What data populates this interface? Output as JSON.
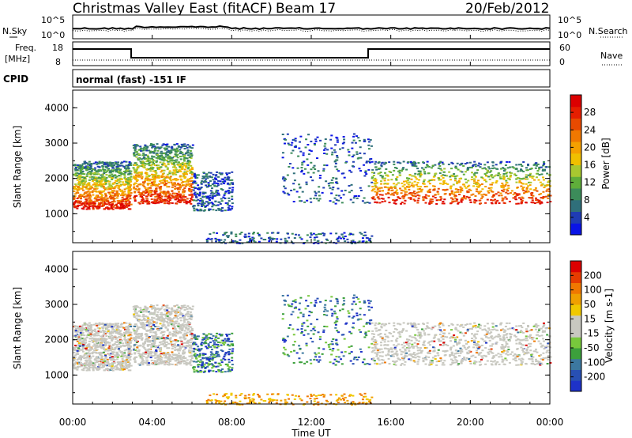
{
  "header": {
    "title": "Christmas Valley East (fitACF)",
    "beam": "Beam 17",
    "date": "20/Feb/2012"
  },
  "noise_panel": {
    "left_label": "N.Sky",
    "left_ticks": [
      "10^5",
      "10^0"
    ],
    "right_label": "N.Search",
    "right_ticks": [
      "10^5",
      "10^0"
    ]
  },
  "freq_panel": {
    "left_label_line1": "Freq.",
    "left_label_line2": "[MHz]",
    "left_ticks": [
      "18",
      "8"
    ],
    "right_label": "Nave",
    "right_ticks": [
      "60",
      "0"
    ]
  },
  "cpid_panel": {
    "label": "CPID",
    "text": "normal (fast) -151 IF"
  },
  "chart_data": [
    {
      "type": "heatmap",
      "name": "Power",
      "ylabel": "Slant Range [km]",
      "yticks": [
        "1000",
        "2000",
        "3000",
        "4000"
      ],
      "ylim": [
        180,
        4500
      ],
      "xlim_hours": [
        0,
        24
      ],
      "colorbar": {
        "label": "Power [dB]",
        "ticks": [
          "4",
          "8",
          "12",
          "16",
          "20",
          "24",
          "28"
        ],
        "colors": [
          "#0a14e6",
          "#1f3cb4",
          "#2f6f7a",
          "#3c8c5a",
          "#5fae3a",
          "#a8c830",
          "#f0c000",
          "#f5a000",
          "#f07800",
          "#e84a00",
          "#e61e00",
          "#dc0000"
        ]
      },
      "echo_regions": [
        {
          "t0": 0.0,
          "t1": 2.9,
          "r0": 1150,
          "r1": 2500,
          "kind": "band"
        },
        {
          "t0": 3.0,
          "t1": 6.0,
          "r0": 1300,
          "r1": 3000,
          "kind": "band"
        },
        {
          "t0": 6.0,
          "t1": 8.0,
          "r0": 1100,
          "r1": 2200,
          "kind": "patch"
        },
        {
          "t0": 10.5,
          "t1": 15.0,
          "r0": 1300,
          "r1": 3300,
          "kind": "patch"
        },
        {
          "t0": 15.0,
          "t1": 24.0,
          "r0": 1300,
          "r1": 2500,
          "kind": "band"
        },
        {
          "t0": 6.5,
          "t1": 15.0,
          "r0": 180,
          "r1": 500,
          "kind": "ground"
        }
      ]
    },
    {
      "type": "heatmap",
      "name": "Velocity",
      "ylabel": "Slant Range [km]",
      "yticks": [
        "1000",
        "2000",
        "3000",
        "4000"
      ],
      "ylim": [
        180,
        4500
      ],
      "xlim_hours": [
        0,
        24
      ],
      "xlabel": "Time UT",
      "xticks": [
        "00:00",
        "04:00",
        "08:00",
        "12:00",
        "16:00",
        "20:00",
        "00:00"
      ],
      "colorbar": {
        "label": "Velocity [m s-1]",
        "ticks": [
          "200",
          "100",
          "50",
          "15",
          "-15",
          "-50",
          "-100",
          "-200"
        ],
        "colors": [
          "#1e32c8",
          "#2850b4",
          "#3c78a0",
          "#3ca03c",
          "#78c83c",
          "#c8c8c0",
          "#c8c8c0",
          "#f0c800",
          "#f0a000",
          "#f07800",
          "#e63c00",
          "#dc0000"
        ]
      }
    }
  ]
}
